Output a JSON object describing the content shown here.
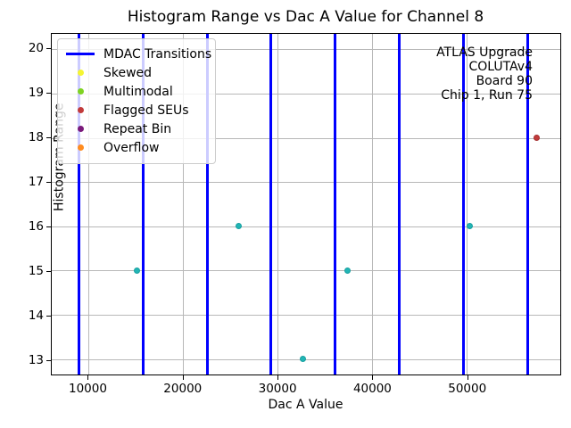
{
  "title": "Histogram Range vs Dac A Value for Channel 8",
  "xlabel": "Dac A Value",
  "ylabel": "Histogram Range",
  "annotation": {
    "lines": [
      "ATLAS Upgrade",
      "COLUTAv4",
      "Board 90",
      "Chip 1, Run 75"
    ]
  },
  "colors": {
    "mdac_line": "#0000ff",
    "grid": "#b8b8b8",
    "normal_point": "#22b5b5",
    "normal_point_edge": "#18a0a0",
    "flagged_point": "#c23b3b",
    "flagged_point_edge": "#a52f2f"
  },
  "legend": {
    "items": [
      {
        "label": "MDAC Transitions",
        "marker": "line",
        "color": "#0000ff"
      },
      {
        "label": "Skewed",
        "marker": "dot",
        "color": "#f5f531"
      },
      {
        "label": "Multimodal",
        "marker": "dot",
        "color": "#7fd322"
      },
      {
        "label": "Flagged SEUs",
        "marker": "dot",
        "color": "#c23b3b"
      },
      {
        "label": "Repeat Bin",
        "marker": "dot",
        "color": "#7a1a7a"
      },
      {
        "label": "Overflow",
        "marker": "dot",
        "color": "#ff8c1f"
      }
    ]
  },
  "chart_data": {
    "type": "scatter",
    "title": "Histogram Range vs Dac A Value for Channel 8",
    "xlabel": "Dac A Value",
    "ylabel": "Histogram Range",
    "xlim": [
      6100,
      59900
    ],
    "ylim": [
      12.65,
      20.35
    ],
    "x_ticks": [
      10000,
      20000,
      30000,
      40000,
      50000
    ],
    "y_ticks": [
      13,
      14,
      15,
      16,
      17,
      18,
      19,
      20
    ],
    "grid": true,
    "legend_position": "upper left",
    "mdac_transitions": [
      8960,
      15744,
      22528,
      29312,
      36096,
      42880,
      49664,
      56448
    ],
    "series": [
      {
        "name": "Histogram Range",
        "marker": "circle",
        "color": "#22b5b5",
        "points": [
          [
            15100,
            15
          ],
          [
            25850,
            16
          ],
          [
            32700,
            13
          ],
          [
            37350,
            15
          ],
          [
            50300,
            16
          ]
        ]
      },
      {
        "name": "Flagged SEUs",
        "marker": "circle",
        "color": "#c23b3b",
        "points": [
          [
            57400,
            18
          ]
        ]
      }
    ]
  }
}
